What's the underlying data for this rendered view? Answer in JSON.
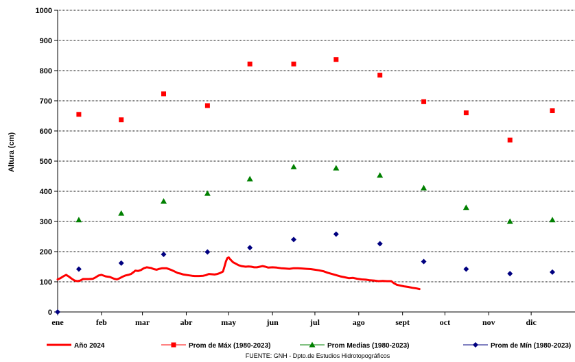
{
  "chart_data": {
    "type": "line",
    "title": "",
    "xlabel": "",
    "ylabel": "Altura (cm)",
    "ylim": [
      0,
      1000
    ],
    "yticks": [
      0,
      100,
      200,
      300,
      400,
      500,
      600,
      700,
      800,
      900,
      1000
    ],
    "xlim": [
      0,
      366
    ],
    "x_ticks": [
      {
        "label": "ene",
        "day": 0
      },
      {
        "label": "feb",
        "day": 31
      },
      {
        "label": "mar",
        "day": 60
      },
      {
        "label": "abr",
        "day": 91
      },
      {
        "label": "may",
        "day": 121
      },
      {
        "label": "jun",
        "day": 152
      },
      {
        "label": "jul",
        "day": 182
      },
      {
        "label": "ago",
        "day": 213
      },
      {
        "label": "sept",
        "day": 244
      },
      {
        "label": "oct",
        "day": 274
      },
      {
        "label": "nov",
        "day": 305
      },
      {
        "label": "dic",
        "day": 335
      }
    ],
    "grid": "horizontal-dotted",
    "legend_position": "bottom",
    "series": [
      {
        "name": "Año 2024",
        "kind": "line",
        "color": "#ff0000",
        "points": [
          [
            0,
            108
          ],
          [
            2,
            112
          ],
          [
            4,
            118
          ],
          [
            6,
            123
          ],
          [
            8,
            117
          ],
          [
            10,
            110
          ],
          [
            12,
            104
          ],
          [
            14,
            102
          ],
          [
            16,
            104
          ],
          [
            18,
            109
          ],
          [
            22,
            109
          ],
          [
            25,
            110
          ],
          [
            27,
            115
          ],
          [
            29,
            121
          ],
          [
            31,
            123
          ],
          [
            34,
            118
          ],
          [
            37,
            116
          ],
          [
            40,
            110
          ],
          [
            42,
            108
          ],
          [
            44,
            112
          ],
          [
            46,
            117
          ],
          [
            48,
            121
          ],
          [
            50,
            123
          ],
          [
            52,
            126
          ],
          [
            54,
            133
          ],
          [
            55,
            137
          ],
          [
            57,
            136
          ],
          [
            59,
            139
          ],
          [
            61,
            145
          ],
          [
            63,
            148
          ],
          [
            66,
            146
          ],
          [
            68,
            142
          ],
          [
            70,
            140
          ],
          [
            72,
            143
          ],
          [
            74,
            145
          ],
          [
            77,
            145
          ],
          [
            80,
            140
          ],
          [
            82,
            136
          ],
          [
            85,
            129
          ],
          [
            87,
            127
          ],
          [
            89,
            124
          ],
          [
            92,
            122
          ],
          [
            95,
            120
          ],
          [
            97,
            119
          ],
          [
            100,
            119
          ],
          [
            103,
            120
          ],
          [
            105,
            122
          ],
          [
            107,
            126
          ],
          [
            109,
            125
          ],
          [
            111,
            124
          ],
          [
            113,
            126
          ],
          [
            115,
            129
          ],
          [
            117,
            134
          ],
          [
            118,
            150
          ],
          [
            119,
            167
          ],
          [
            120,
            178
          ],
          [
            121,
            181
          ],
          [
            122,
            175
          ],
          [
            124,
            165
          ],
          [
            126,
            160
          ],
          [
            128,
            155
          ],
          [
            130,
            152
          ],
          [
            133,
            150
          ],
          [
            135,
            151
          ],
          [
            137,
            150
          ],
          [
            139,
            148
          ],
          [
            141,
            148
          ],
          [
            143,
            150
          ],
          [
            145,
            152
          ],
          [
            147,
            150
          ],
          [
            149,
            147
          ],
          [
            152,
            148
          ],
          [
            155,
            147
          ],
          [
            158,
            145
          ],
          [
            161,
            144
          ],
          [
            164,
            143
          ],
          [
            167,
            145
          ],
          [
            170,
            145
          ],
          [
            173,
            144
          ],
          [
            176,
            143
          ],
          [
            179,
            142
          ],
          [
            182,
            140
          ],
          [
            185,
            138
          ],
          [
            188,
            135
          ],
          [
            191,
            130
          ],
          [
            194,
            126
          ],
          [
            197,
            122
          ],
          [
            200,
            118
          ],
          [
            203,
            115
          ],
          [
            206,
            112
          ],
          [
            209,
            113
          ],
          [
            212,
            110
          ],
          [
            215,
            108
          ],
          [
            218,
            107
          ],
          [
            221,
            105
          ],
          [
            224,
            104
          ],
          [
            227,
            102
          ],
          [
            230,
            103
          ],
          [
            233,
            102
          ],
          [
            236,
            102
          ],
          [
            238,
            95
          ],
          [
            240,
            90
          ],
          [
            242,
            88
          ],
          [
            245,
            85
          ],
          [
            248,
            83
          ],
          [
            251,
            80
          ],
          [
            254,
            78
          ],
          [
            256,
            76
          ]
        ]
      },
      {
        "name": "Prom de Máx (1980-2023)",
        "kind": "markers",
        "marker": "square",
        "color": "#ff0000",
        "points": [
          [
            15,
            655
          ],
          [
            45,
            637
          ],
          [
            75,
            723
          ],
          [
            106,
            684
          ],
          [
            136,
            822
          ],
          [
            167,
            822
          ],
          [
            197,
            837
          ],
          [
            228,
            785
          ],
          [
            259,
            697
          ],
          [
            289,
            660
          ],
          [
            320,
            570
          ],
          [
            350,
            667
          ]
        ]
      },
      {
        "name": "Prom Medias (1980-2023)",
        "kind": "markers",
        "marker": "triangle",
        "color": "#008000",
        "points": [
          [
            15,
            305
          ],
          [
            45,
            327
          ],
          [
            75,
            367
          ],
          [
            106,
            393
          ],
          [
            136,
            441
          ],
          [
            167,
            481
          ],
          [
            197,
            477
          ],
          [
            228,
            453
          ],
          [
            259,
            411
          ],
          [
            289,
            346
          ],
          [
            320,
            300
          ],
          [
            350,
            305
          ]
        ]
      },
      {
        "name": "Prom de Mín  (1980-2023)",
        "kind": "markers",
        "marker": "diamond",
        "color": "#000080",
        "points": [
          [
            0,
            0
          ],
          [
            15,
            142
          ],
          [
            45,
            162
          ],
          [
            75,
            191
          ],
          [
            106,
            199
          ],
          [
            136,
            213
          ],
          [
            167,
            240
          ],
          [
            197,
            258
          ],
          [
            228,
            226
          ],
          [
            259,
            167
          ],
          [
            289,
            142
          ],
          [
            320,
            127
          ],
          [
            350,
            132
          ]
        ]
      }
    ],
    "source": "FUENTE: GNH - Dpto.de Estudios Hidrotopográficos"
  }
}
